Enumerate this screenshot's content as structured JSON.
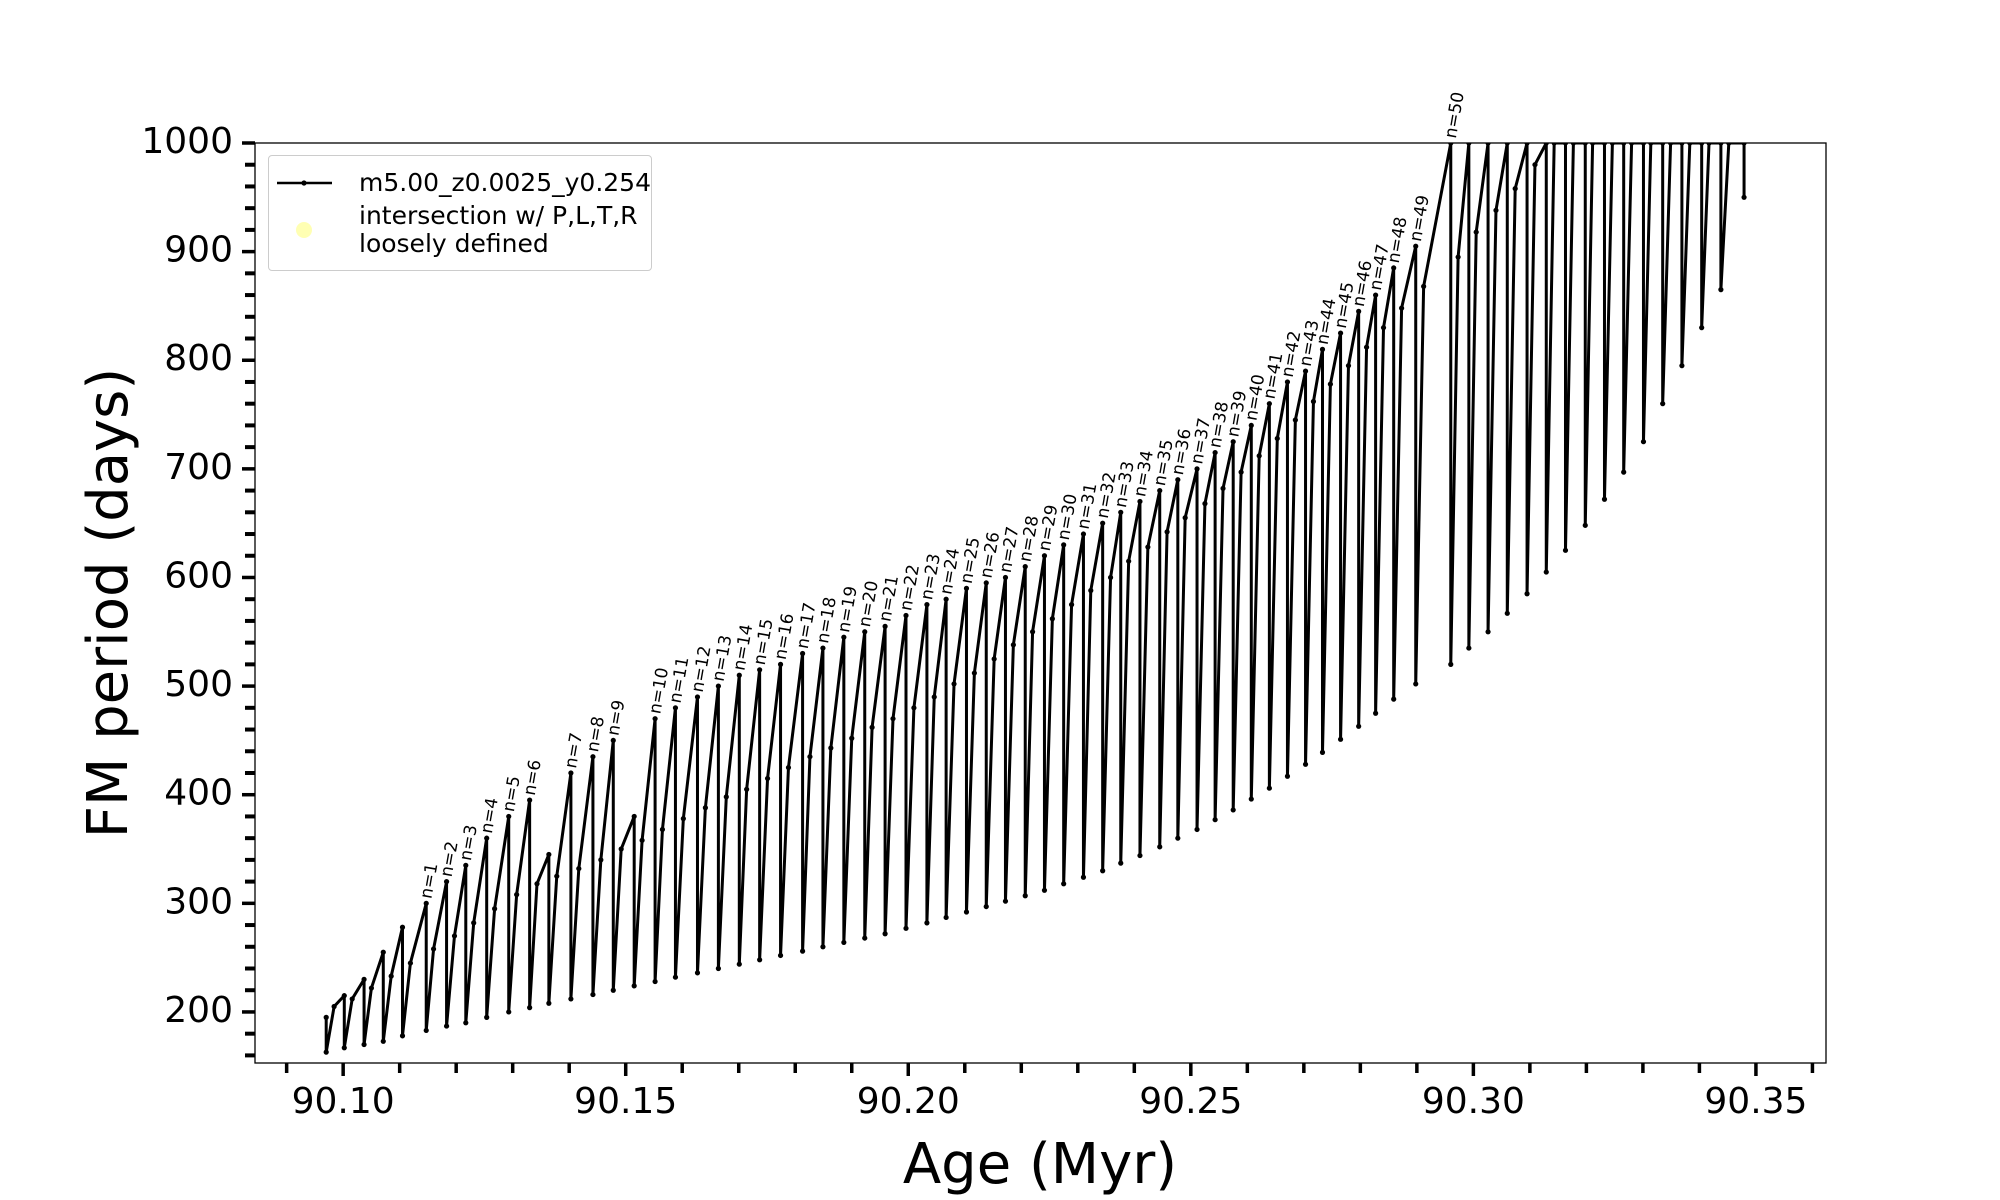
{
  "chart_data": {
    "type": "line",
    "xlabel": "Age (Myr)",
    "ylabel": "FM period (days)",
    "xlim": [
      90.0844,
      90.3624
    ],
    "ylim": [
      153,
      1000
    ],
    "xticks": [
      {
        "value": 90.1,
        "label": "90.10"
      },
      {
        "value": 90.15,
        "label": "90.15"
      },
      {
        "value": 90.2,
        "label": "90.20"
      },
      {
        "value": 90.25,
        "label": "90.25"
      },
      {
        "value": 90.3,
        "label": "90.30"
      },
      {
        "value": 90.35,
        "label": "90.35"
      }
    ],
    "xminorticks": [
      90.09,
      90.11,
      90.12,
      90.13,
      90.14,
      90.16,
      90.17,
      90.18,
      90.19,
      90.21,
      90.22,
      90.23,
      90.24,
      90.26,
      90.27,
      90.28,
      90.29,
      90.31,
      90.32,
      90.33,
      90.34,
      90.36
    ],
    "yticks": [
      200,
      300,
      400,
      500,
      600,
      700,
      800,
      900,
      1000
    ],
    "yminorticks": [
      160,
      180,
      220,
      240,
      260,
      280,
      320,
      340,
      360,
      380,
      420,
      440,
      460,
      480,
      520,
      540,
      560,
      580,
      620,
      640,
      660,
      680,
      720,
      740,
      760,
      780,
      820,
      840,
      860,
      880,
      920,
      940,
      960,
      980
    ],
    "legend": "upper left",
    "series": [
      {
        "name": "m5.00_z0.0025_y0.254",
        "color": "#000000",
        "x": [
          90.097,
          90.097,
          90.0984,
          90.1002,
          90.1002,
          90.1016,
          90.1037,
          90.1037,
          90.105,
          90.1071,
          90.1071,
          90.1085,
          90.1105,
          90.1105,
          90.1119,
          90.1147,
          90.1147,
          90.116,
          90.1183,
          90.1183,
          90.1197,
          90.1217,
          90.1217,
          90.1231,
          90.1254,
          90.1254,
          90.1268,
          90.1293,
          90.1293,
          90.1307,
          90.133,
          90.133,
          90.1343,
          90.1364,
          90.1364,
          90.1378,
          90.1403,
          90.1403,
          90.1417,
          90.1442,
          90.1442,
          90.1456,
          90.1478,
          90.1478,
          90.1492,
          90.1515,
          90.1515,
          90.1529,
          90.1552,
          90.1552,
          90.1565,
          90.1588,
          90.1588,
          90.1602,
          90.1627,
          90.1627,
          90.1641,
          90.1664,
          90.1664,
          90.1678,
          90.1701,
          90.1701,
          90.1714,
          90.1737,
          90.1737,
          90.1751,
          90.1774,
          90.1774,
          90.1788,
          90.1813,
          90.1813,
          90.1826,
          90.1849,
          90.1849,
          90.1863,
          90.1886,
          90.1886,
          90.19,
          90.1923,
          90.1923,
          90.1936,
          90.1959,
          90.1959,
          90.1973,
          90.1996,
          90.1996,
          90.201,
          90.2033,
          90.2033,
          90.2046,
          90.2067,
          90.2067,
          90.2081,
          90.2103,
          90.2103,
          90.2117,
          90.2138,
          90.2138,
          90.2152,
          90.2172,
          90.2172,
          90.2186,
          90.2207,
          90.2207,
          90.222,
          90.2241,
          90.2241,
          90.2255,
          90.2275,
          90.2275,
          90.2289,
          90.231,
          90.231,
          90.2323,
          90.2344,
          90.2344,
          90.2358,
          90.2376,
          90.2376,
          90.239,
          90.241,
          90.241,
          90.2424,
          90.2445,
          90.2445,
          90.2458,
          90.2477,
          90.2477,
          90.249,
          90.2511,
          90.2511,
          90.2525,
          90.2543,
          90.2543,
          90.2557,
          90.2575,
          90.2575,
          90.2589,
          90.2607,
          90.2607,
          90.2621,
          90.2639,
          90.2639,
          90.2653,
          90.2671,
          90.2671,
          90.2685,
          90.2703,
          90.2703,
          90.2717,
          90.2733,
          90.2733,
          90.2747,
          90.2765,
          90.2765,
          90.2779,
          90.2797,
          90.2797,
          90.2811,
          90.2827,
          90.2827,
          90.2841,
          90.2859,
          90.2859,
          90.2873,
          90.2898,
          90.2898,
          90.2912,
          90.296,
          90.296,
          90.2973,
          90.2992,
          90.2992,
          90.3005,
          90.3026,
          90.3026,
          90.304,
          90.306,
          90.306,
          90.3074,
          90.3095,
          90.3095,
          90.3109,
          90.3129,
          90.3129,
          90.3143,
          90.3163,
          90.3163,
          90.3177,
          90.3198,
          90.3198,
          90.3211,
          90.3232,
          90.3232,
          90.3246,
          90.3266,
          90.3266,
          90.328,
          90.3301,
          90.3301,
          90.3314,
          90.3335,
          90.3335,
          90.3349,
          90.3369,
          90.3369,
          90.3383,
          90.3404,
          90.3404,
          90.3417,
          90.3438,
          90.3438,
          90.3452,
          90.3479,
          90.3479
        ],
        "values": [
          195,
          163,
          205,
          215,
          167,
          212,
          230,
          170,
          222,
          255,
          173,
          233,
          278,
          178,
          245,
          300,
          183,
          258,
          320,
          187,
          270,
          335,
          190,
          282,
          360,
          195,
          295,
          380,
          200,
          308,
          395,
          204,
          318,
          345,
          208,
          325,
          420,
          212,
          332,
          435,
          216,
          340,
          450,
          220,
          350,
          380,
          224,
          358,
          470,
          228,
          368,
          480,
          232,
          378,
          490,
          236,
          388,
          500,
          240,
          398,
          510,
          244,
          405,
          515,
          248,
          415,
          520,
          252,
          425,
          530,
          256,
          435,
          535,
          260,
          443,
          545,
          264,
          452,
          550,
          268,
          462,
          555,
          272,
          470,
          565,
          277,
          480,
          575,
          282,
          490,
          580,
          287,
          502,
          590,
          292,
          512,
          595,
          297,
          525,
          600,
          302,
          538,
          610,
          307,
          550,
          620,
          312,
          562,
          630,
          318,
          575,
          640,
          324,
          588,
          650,
          330,
          600,
          660,
          337,
          615,
          670,
          344,
          628,
          680,
          352,
          642,
          690,
          360,
          655,
          700,
          368,
          668,
          715,
          377,
          682,
          725,
          386,
          697,
          740,
          396,
          712,
          760,
          406,
          728,
          780,
          417,
          745,
          790,
          428,
          762,
          810,
          439,
          778,
          825,
          451,
          795,
          845,
          463,
          812,
          860,
          475,
          830,
          885,
          488,
          848,
          905,
          502,
          868,
          1000,
          520,
          895,
          1000,
          535,
          918,
          1000,
          550,
          938,
          1000,
          567,
          958,
          1000,
          585,
          980,
          1000,
          605,
          1000,
          1000,
          625,
          1000,
          1000,
          648,
          1000,
          1000,
          672,
          1000,
          1000,
          697,
          1000,
          1000,
          725,
          1000,
          1000,
          760,
          1000,
          1000,
          795,
          1000,
          1000,
          830,
          1000,
          1000,
          865,
          1000,
          1000,
          950
        ]
      },
      {
        "name": "intersection w/ P,L,T,R\nloosely defined",
        "color": "#ffffb3"
      }
    ],
    "annotations": [
      {
        "text": "n=1",
        "x": 90.1147,
        "y": 300
      },
      {
        "text": "n=2",
        "x": 90.1183,
        "y": 320
      },
      {
        "text": "n=3",
        "x": 90.1217,
        "y": 335
      },
      {
        "text": "n=4",
        "x": 90.1254,
        "y": 360
      },
      {
        "text": "n=5",
        "x": 90.1293,
        "y": 380
      },
      {
        "text": "n=6",
        "x": 90.133,
        "y": 395
      },
      {
        "text": "n=7",
        "x": 90.1403,
        "y": 420
      },
      {
        "text": "n=8",
        "x": 90.1442,
        "y": 435
      },
      {
        "text": "n=9",
        "x": 90.1478,
        "y": 450
      },
      {
        "text": "n=10",
        "x": 90.1552,
        "y": 470
      },
      {
        "text": "n=11",
        "x": 90.1588,
        "y": 480
      },
      {
        "text": "n=12",
        "x": 90.1627,
        "y": 490
      },
      {
        "text": "n=13",
        "x": 90.1664,
        "y": 500
      },
      {
        "text": "n=14",
        "x": 90.1701,
        "y": 510
      },
      {
        "text": "n=15",
        "x": 90.1737,
        "y": 515
      },
      {
        "text": "n=16",
        "x": 90.1774,
        "y": 520
      },
      {
        "text": "n=17",
        "x": 90.1813,
        "y": 530
      },
      {
        "text": "n=18",
        "x": 90.1849,
        "y": 535
      },
      {
        "text": "n=19",
        "x": 90.1886,
        "y": 545
      },
      {
        "text": "n=20",
        "x": 90.1923,
        "y": 550
      },
      {
        "text": "n=21",
        "x": 90.1959,
        "y": 555
      },
      {
        "text": "n=22",
        "x": 90.1996,
        "y": 565
      },
      {
        "text": "n=23",
        "x": 90.2033,
        "y": 575
      },
      {
        "text": "n=24",
        "x": 90.2067,
        "y": 580
      },
      {
        "text": "n=25",
        "x": 90.2103,
        "y": 590
      },
      {
        "text": "n=26",
        "x": 90.2138,
        "y": 595
      },
      {
        "text": "n=27",
        "x": 90.2172,
        "y": 600
      },
      {
        "text": "n=28",
        "x": 90.2207,
        "y": 610
      },
      {
        "text": "n=29",
        "x": 90.2241,
        "y": 620
      },
      {
        "text": "n=30",
        "x": 90.2275,
        "y": 630
      },
      {
        "text": "n=31",
        "x": 90.231,
        "y": 640
      },
      {
        "text": "n=32",
        "x": 90.2344,
        "y": 650
      },
      {
        "text": "n=33",
        "x": 90.2376,
        "y": 660
      },
      {
        "text": "n=34",
        "x": 90.241,
        "y": 670
      },
      {
        "text": "n=35",
        "x": 90.2445,
        "y": 680
      },
      {
        "text": "n=36",
        "x": 90.2477,
        "y": 690
      },
      {
        "text": "n=37",
        "x": 90.2511,
        "y": 700
      },
      {
        "text": "n=38",
        "x": 90.2543,
        "y": 715
      },
      {
        "text": "n=39",
        "x": 90.2575,
        "y": 725
      },
      {
        "text": "n=40",
        "x": 90.2607,
        "y": 740
      },
      {
        "text": "n=41",
        "x": 90.2639,
        "y": 760
      },
      {
        "text": "n=42",
        "x": 90.2671,
        "y": 780
      },
      {
        "text": "n=43",
        "x": 90.2703,
        "y": 790
      },
      {
        "text": "n=44",
        "x": 90.2733,
        "y": 810
      },
      {
        "text": "n=45",
        "x": 90.2765,
        "y": 825
      },
      {
        "text": "n=46",
        "x": 90.2797,
        "y": 845
      },
      {
        "text": "n=47",
        "x": 90.2827,
        "y": 860
      },
      {
        "text": "n=48",
        "x": 90.2859,
        "y": 885
      },
      {
        "text": "n=49",
        "x": 90.2898,
        "y": 905
      },
      {
        "text": "n=50",
        "x": 90.296,
        "y": 1000
      }
    ]
  }
}
